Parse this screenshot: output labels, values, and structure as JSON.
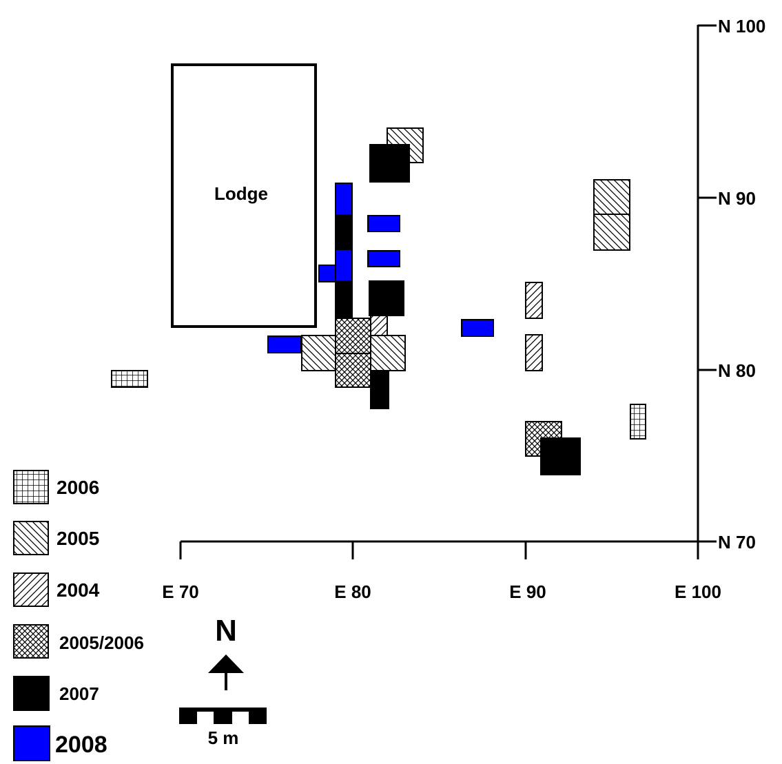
{
  "map": {
    "structure_label": "Lodge",
    "x_ticks": [
      {
        "value": 70,
        "label": "E 70"
      },
      {
        "value": 80,
        "label": "E 80"
      },
      {
        "value": 90,
        "label": "E 90"
      },
      {
        "value": 100,
        "label": "E 100"
      }
    ],
    "y_ticks": [
      {
        "value": 100,
        "label": "N 100"
      },
      {
        "value": 90,
        "label": "N 90"
      },
      {
        "value": 80,
        "label": "N 80"
      },
      {
        "value": 70,
        "label": "N 70"
      }
    ],
    "north_label": "N",
    "scale_label": "5 m",
    "colors": {
      "unit_2008": "#0000ff",
      "unit_2007": "#000000",
      "outline": "#000000"
    }
  },
  "legend": [
    {
      "year": "2006",
      "pattern": "grid"
    },
    {
      "year": "2005",
      "pattern": "hatch-back"
    },
    {
      "year": "2004",
      "pattern": "hatch-forward"
    },
    {
      "year": "2005/2006",
      "pattern": "crosshatch"
    },
    {
      "year": "2007",
      "pattern": "solid-black"
    },
    {
      "year": "2008",
      "pattern": "solid-blue"
    }
  ]
}
